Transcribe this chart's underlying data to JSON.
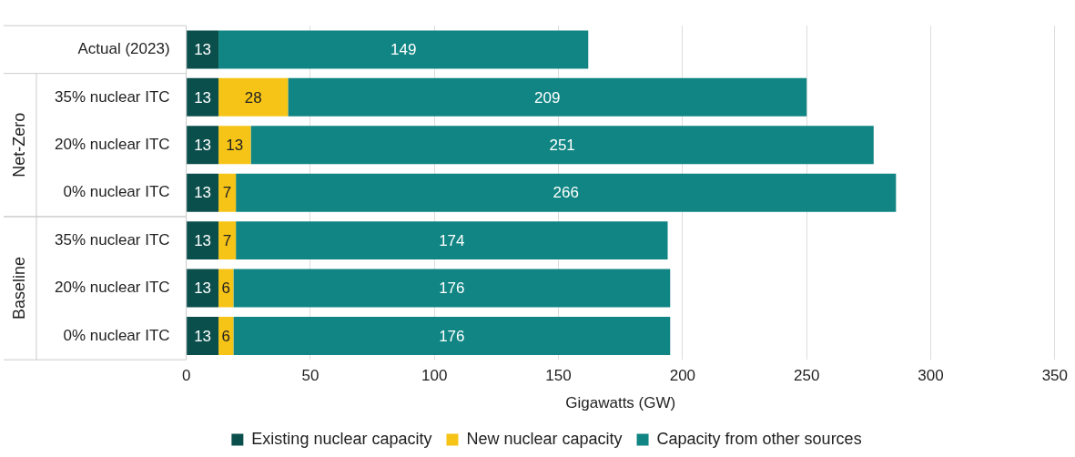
{
  "chart_data": {
    "type": "bar",
    "orientation": "horizontal",
    "stacked": true,
    "categories": [
      "Actual (2023)",
      "35% nuclear ITC",
      "20% nuclear ITC",
      "0% nuclear ITC",
      "35% nuclear ITC",
      "20% nuclear ITC",
      "0% nuclear ITC"
    ],
    "series": [
      {
        "name": "Existing nuclear capacity",
        "color": "#0b4f4c",
        "values": [
          13,
          13,
          13,
          13,
          13,
          13,
          13
        ]
      },
      {
        "name": "New nuclear capacity",
        "color": "#f6c417",
        "values": [
          null,
          28,
          13,
          7,
          7,
          6,
          6
        ]
      },
      {
        "name": "Capacity from other sources",
        "color": "#108583",
        "values": [
          149,
          209,
          251,
          266,
          174,
          176,
          176
        ]
      }
    ],
    "xlabel": "Gigawatts (GW)",
    "xlim": [
      0,
      350
    ],
    "xticks": [
      0,
      50,
      100,
      150,
      200,
      250,
      300,
      350
    ],
    "annotations": [
      "Net-Zero",
      "Baseline"
    ],
    "data_labels": true,
    "grid": "x",
    "legend": "bottom"
  }
}
